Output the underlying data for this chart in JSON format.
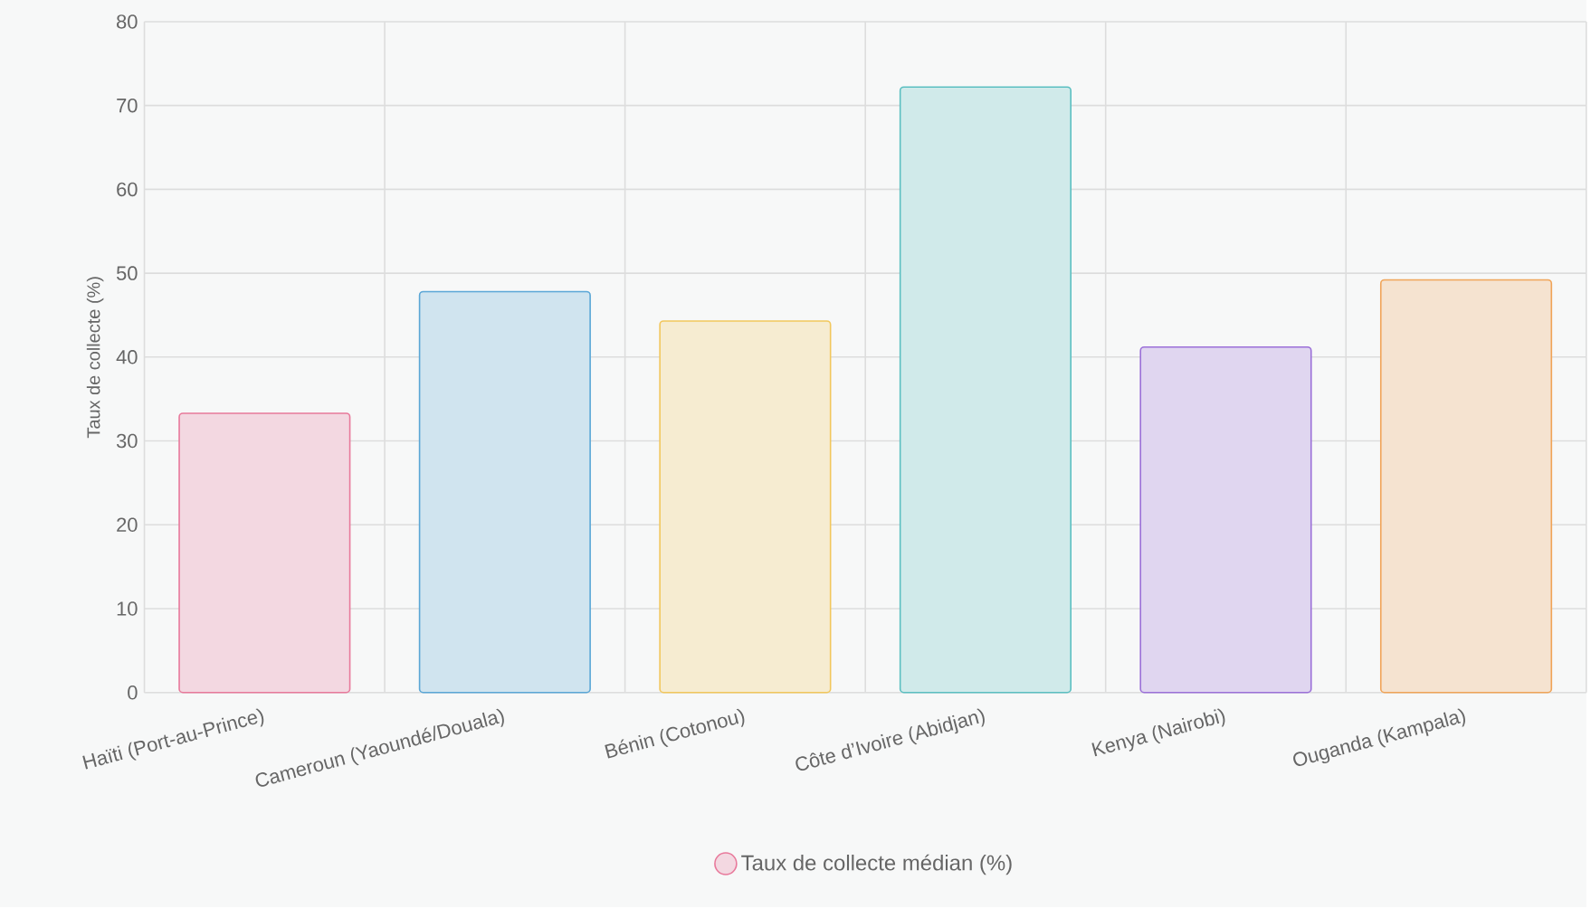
{
  "chart_data": {
    "type": "bar",
    "ylabel": "Taux de collecte (%)",
    "categories": [
      "Haïti (Port-au-Prince)",
      "Cameroun (Yaoundé/Douala)",
      "Bénin (Cotonou)",
      "Côte d’Ivoire (Abidjan)",
      "Kenya (Nairobi)",
      "Ouganda (Kampala)"
    ],
    "series": [
      {
        "name": "Taux de collecte médian (%)",
        "values": [
          33.3,
          47.8,
          44.3,
          72.2,
          41.2,
          49.2
        ],
        "colors": [
          "#e8799b",
          "#5aa6d6",
          "#f2c75c",
          "#5bbfc1",
          "#9b70d8",
          "#f0a458"
        ]
      }
    ],
    "ylim": [
      0,
      80
    ],
    "yticks": [
      0,
      10,
      20,
      30,
      40,
      50,
      60,
      70,
      80
    ],
    "grid": true,
    "legend": "bottom"
  }
}
